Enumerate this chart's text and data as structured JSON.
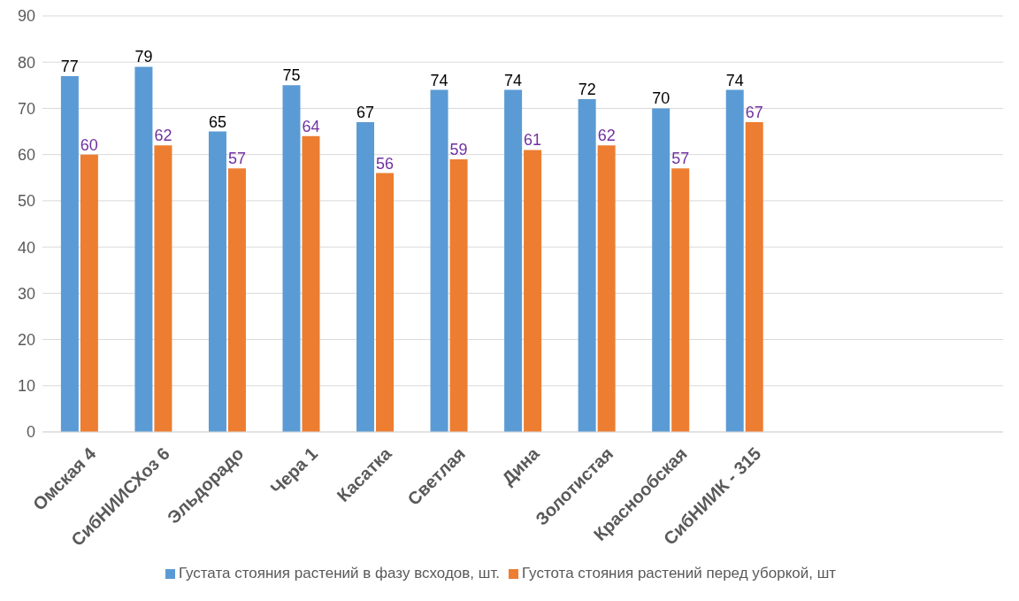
{
  "chart_data": {
    "type": "bar",
    "categories": [
      "Омская 4",
      "СибНИИСХоз 6",
      "Эльдорадо",
      "Чера 1",
      "Касатка",
      "Светлая",
      "Дина",
      "Золотистая",
      "Краснообская",
      "СибНИИК - 315",
      null,
      null,
      null
    ],
    "series": [
      {
        "name": "Густата стояния растений в фазу всходов, шт.",
        "color": "#5b9bd5",
        "values": [
          77,
          79,
          65,
          75,
          67,
          74,
          74,
          72,
          70,
          74,
          null,
          null,
          null
        ]
      },
      {
        "name": "Густота стояния растений перед уборкой, шт",
        "color": "#ed7d31",
        "values": [
          60,
          62,
          57,
          64,
          56,
          59,
          61,
          62,
          57,
          67,
          null,
          null,
          null
        ]
      }
    ],
    "ylim": [
      0,
      90
    ],
    "yticks": [
      0,
      10,
      20,
      30,
      40,
      50,
      60,
      70,
      80,
      90
    ],
    "grid": "y",
    "legend": "bottom",
    "data_labels": true
  }
}
